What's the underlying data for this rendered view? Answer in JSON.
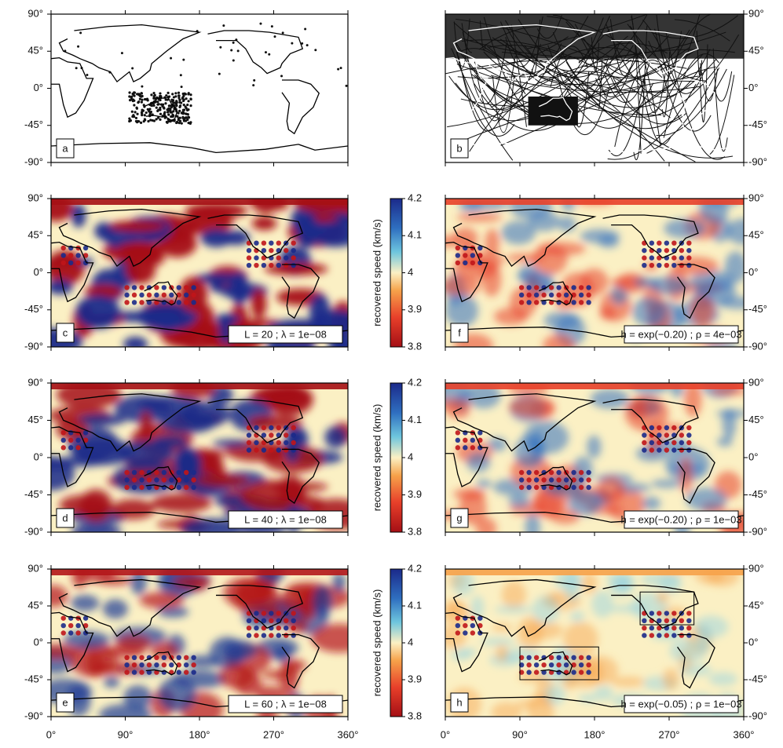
{
  "panels": [
    {
      "label": "a"
    },
    {
      "label": "b"
    },
    {
      "label": "c",
      "caption": "L = 20 ; λ = 1e−08"
    },
    {
      "label": "d",
      "caption": "L = 40 ; λ = 1e−08"
    },
    {
      "label": "e",
      "caption": "L = 60 ; λ = 1e−08"
    },
    {
      "label": "f",
      "caption": "h = exp(−0.20) ; ρ = 4e−03"
    },
    {
      "label": "g",
      "caption": "h = exp(−0.20) ; ρ = 1e−03"
    },
    {
      "label": "h",
      "caption": "h = exp(−0.05) ; ρ = 1e−03"
    }
  ],
  "latitude_axis": {
    "lim": [
      -90,
      90
    ],
    "ticks": [
      {
        "value": 90,
        "label": "90°"
      },
      {
        "value": 45,
        "label": "45°"
      },
      {
        "value": 0,
        "label": "0°"
      },
      {
        "value": -45,
        "label": "-45°"
      },
      {
        "value": -90,
        "label": "-90°"
      }
    ]
  },
  "longitude_axis": {
    "lim": [
      0,
      360
    ],
    "ticks": [
      {
        "value": 0,
        "label": "0°"
      },
      {
        "value": 90,
        "label": "90°"
      },
      {
        "value": 180,
        "label": "180°"
      },
      {
        "value": 270,
        "label": "270°"
      },
      {
        "value": 360,
        "label": "360°"
      }
    ]
  },
  "colorbar": {
    "label": "recovered speed (km/s)",
    "lim": [
      3.8,
      4.2
    ],
    "ticks": [
      3.8,
      3.9,
      4,
      4.1,
      4.2
    ]
  }
}
